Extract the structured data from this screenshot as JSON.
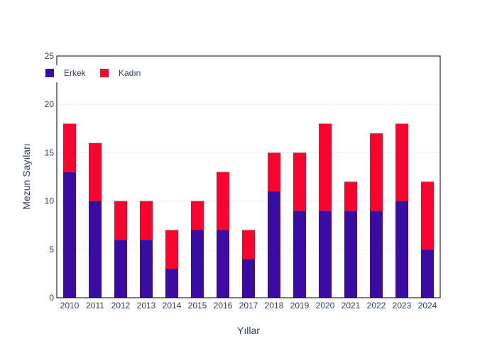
{
  "chart_data": {
    "type": "bar",
    "barmode": "stack",
    "xlabel": "Yıllar",
    "ylabel": "Mezun Sayıları",
    "categories": [
      "2010",
      "2011",
      "2012",
      "2013",
      "2014",
      "2015",
      "2016",
      "2017",
      "2018",
      "2019",
      "2020",
      "2021",
      "2022",
      "2023",
      "2024"
    ],
    "series": [
      {
        "name": "Erkek",
        "color": "#3a0ca3",
        "values": [
          13,
          10,
          6,
          6,
          3,
          7,
          7,
          4,
          11,
          9,
          9,
          9,
          9,
          10,
          5
        ]
      },
      {
        "name": "Kadın",
        "color": "#f7052d",
        "values": [
          5,
          6,
          4,
          4,
          4,
          3,
          6,
          3,
          4,
          6,
          9,
          3,
          8,
          8,
          7
        ]
      }
    ],
    "ylim": [
      0,
      25
    ],
    "yticks": [
      0,
      5,
      10,
      15,
      20,
      25
    ],
    "grid": true,
    "legend_position": "top-left"
  }
}
